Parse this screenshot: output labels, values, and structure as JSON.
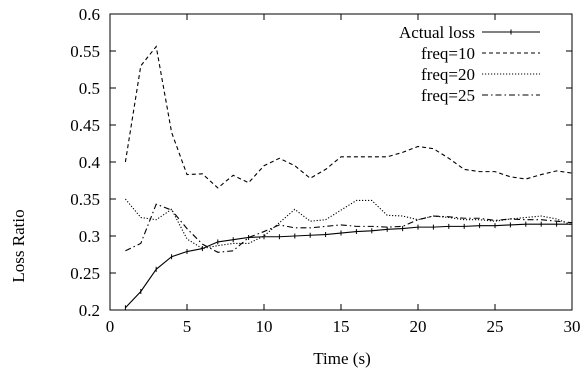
{
  "chart_data": {
    "type": "line",
    "title": "",
    "xlabel": "Time (s)",
    "ylabel": "Loss Ratio",
    "xlim": [
      0,
      30
    ],
    "ylim": [
      0.2,
      0.6
    ],
    "xticks": [
      "0",
      "5",
      "10",
      "15",
      "20",
      "25",
      "30"
    ],
    "yticks": [
      "0.2",
      "0.25",
      "0.3",
      "0.35",
      "0.4",
      "0.45",
      "0.5",
      "0.55",
      "0.6"
    ],
    "grid": false,
    "legend_position": "top-right",
    "series": [
      {
        "name": "Actual loss",
        "style": "solid-with-markers",
        "x": [
          1,
          2,
          3,
          4,
          5,
          6,
          7,
          8,
          9,
          10,
          11,
          12,
          13,
          14,
          15,
          16,
          17,
          18,
          19,
          20,
          21,
          22,
          23,
          24,
          25,
          26,
          27,
          28,
          29,
          30
        ],
        "y": [
          0.203,
          0.225,
          0.255,
          0.272,
          0.279,
          0.283,
          0.292,
          0.295,
          0.298,
          0.299,
          0.299,
          0.3,
          0.301,
          0.302,
          0.304,
          0.306,
          0.307,
          0.309,
          0.31,
          0.312,
          0.312,
          0.313,
          0.313,
          0.314,
          0.314,
          0.315,
          0.316,
          0.316,
          0.316,
          0.316
        ]
      },
      {
        "name": "freq=10",
        "style": "dashed",
        "x": [
          1,
          2,
          3,
          4,
          5,
          6,
          7,
          8,
          9,
          10,
          11,
          12,
          13,
          14,
          15,
          16,
          17,
          18,
          19,
          20,
          21,
          22,
          23,
          24,
          25,
          26,
          27,
          28,
          29,
          30
        ],
        "y": [
          0.4,
          0.53,
          0.556,
          0.44,
          0.383,
          0.384,
          0.365,
          0.382,
          0.372,
          0.395,
          0.405,
          0.395,
          0.378,
          0.39,
          0.407,
          0.407,
          0.407,
          0.407,
          0.413,
          0.421,
          0.418,
          0.405,
          0.39,
          0.387,
          0.387,
          0.38,
          0.377,
          0.383,
          0.388,
          0.385
        ]
      },
      {
        "name": "freq=20",
        "style": "dotted",
        "x": [
          1,
          2,
          3,
          4,
          5,
          6,
          7,
          8,
          9,
          10,
          11,
          12,
          13,
          14,
          15,
          16,
          17,
          18,
          19,
          20,
          21,
          22,
          23,
          24,
          25,
          26,
          27,
          28,
          29,
          30
        ],
        "y": [
          0.35,
          0.325,
          0.322,
          0.336,
          0.296,
          0.283,
          0.287,
          0.29,
          0.29,
          0.3,
          0.318,
          0.336,
          0.32,
          0.322,
          0.335,
          0.348,
          0.348,
          0.328,
          0.327,
          0.322,
          0.327,
          0.325,
          0.322,
          0.322,
          0.32,
          0.323,
          0.325,
          0.327,
          0.323,
          0.315
        ]
      },
      {
        "name": "freq=25",
        "style": "dash-dot",
        "x": [
          1,
          2,
          3,
          4,
          5,
          6,
          7,
          8,
          9,
          10,
          11,
          12,
          13,
          14,
          15,
          16,
          17,
          18,
          19,
          20,
          21,
          22,
          23,
          24,
          25,
          26,
          27,
          28,
          29,
          30
        ],
        "y": [
          0.28,
          0.29,
          0.343,
          0.335,
          0.31,
          0.289,
          0.278,
          0.28,
          0.298,
          0.306,
          0.315,
          0.311,
          0.311,
          0.313,
          0.315,
          0.313,
          0.313,
          0.312,
          0.313,
          0.322,
          0.327,
          0.326,
          0.324,
          0.324,
          0.321,
          0.323,
          0.322,
          0.322,
          0.32,
          0.318
        ]
      }
    ]
  }
}
